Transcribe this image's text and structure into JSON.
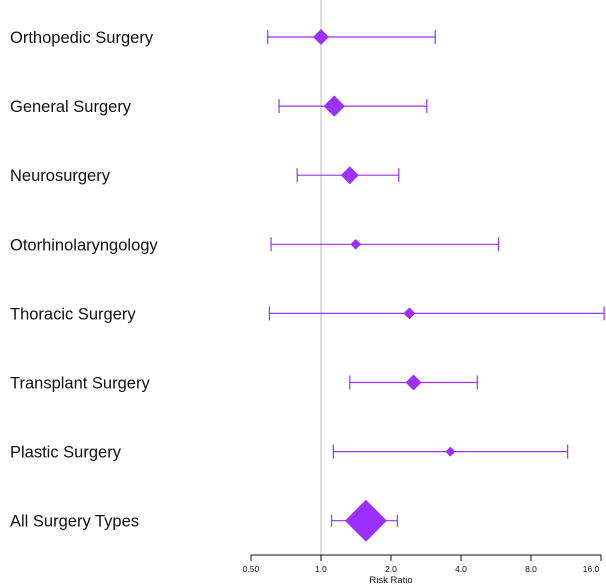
{
  "chart_data": {
    "type": "forest",
    "xlabel": "Risk Ratio",
    "x_scale": "log2",
    "xlim": [
      0.5,
      16.0
    ],
    "reference_line": 1.0,
    "ticks": [
      {
        "value": 0.5,
        "label": "0.50"
      },
      {
        "value": 1.0,
        "label": "1.0"
      },
      {
        "value": 2.0,
        "label": "2.0"
      },
      {
        "value": 4.0,
        "label": "4.0"
      },
      {
        "value": 8.0,
        "label": "8.0"
      },
      {
        "value": 16.0,
        "label": "16.0"
      }
    ],
    "rows": [
      {
        "label": "Orthopedic Surgery",
        "estimate": 1.0,
        "lower": 0.59,
        "upper": 3.1,
        "weight": 0.45
      },
      {
        "label": "General Surgery",
        "estimate": 1.14,
        "lower": 0.66,
        "upper": 2.85,
        "weight": 0.72
      },
      {
        "label": "Neurosurgery",
        "estimate": 1.33,
        "lower": 0.79,
        "upper": 2.16,
        "weight": 0.55
      },
      {
        "label": "Otorhinolaryngology",
        "estimate": 1.41,
        "lower": 0.61,
        "upper": 5.8,
        "weight": 0.18
      },
      {
        "label": "Thoracic Surgery",
        "estimate": 2.4,
        "lower": 0.6,
        "upper": 16.5,
        "weight": 0.25
      },
      {
        "label": "Transplant Surgery",
        "estimate": 2.5,
        "lower": 1.33,
        "upper": 4.7,
        "weight": 0.45
      },
      {
        "label": "Plastic Surgery",
        "estimate": 3.6,
        "lower": 1.13,
        "upper": 11.5,
        "weight": 0.15
      },
      {
        "label": "All Surgery Types",
        "estimate": 1.56,
        "lower": 1.11,
        "upper": 2.13,
        "weight": 1.0,
        "summary": true
      }
    ],
    "grid": false,
    "colors": {
      "marker": "#9b30ff",
      "refline": "#bbbbbb",
      "axis": "#111111"
    }
  }
}
